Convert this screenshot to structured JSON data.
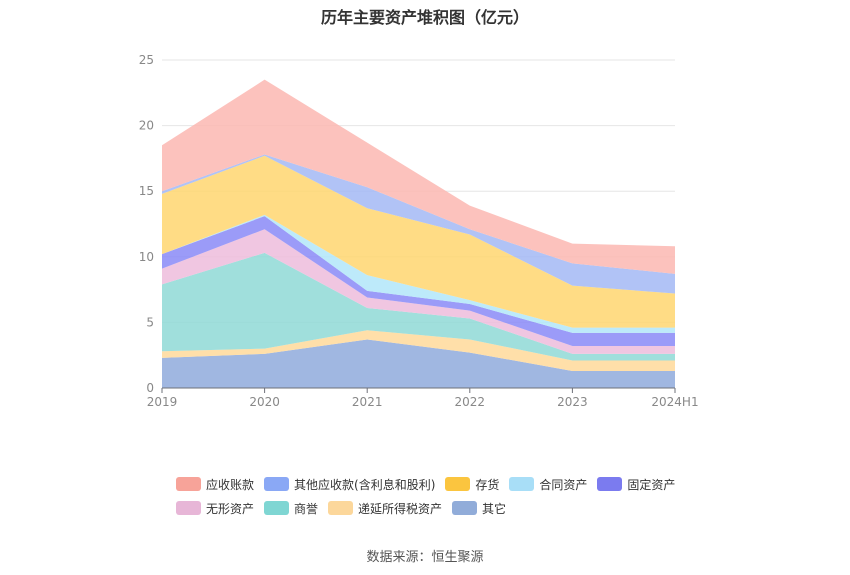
{
  "chart_data": {
    "type": "area",
    "stacked": true,
    "title": "历年主要资产堆积图（亿元）",
    "categories": [
      "2019",
      "2020",
      "2021",
      "2022",
      "2023",
      "2024H1"
    ],
    "ylim": [
      0,
      25
    ],
    "yticks": [
      0,
      5,
      10,
      15,
      20,
      25
    ],
    "grid": true,
    "legend_position": "bottom",
    "series": [
      {
        "name": "其它",
        "color": "#8faadc",
        "values": [
          2.3,
          2.6,
          3.7,
          2.7,
          1.3,
          1.3
        ]
      },
      {
        "name": "递延所得税资产",
        "color": "#ffd99a",
        "values": [
          0.5,
          0.4,
          0.7,
          1.0,
          0.8,
          0.8
        ]
      },
      {
        "name": "商誉",
        "color": "#8fd9d6",
        "values": [
          5.1,
          7.3,
          1.7,
          1.6,
          0.5,
          0.5
        ]
      },
      {
        "name": "无形资产",
        "color": "#edbcdc",
        "values": [
          1.2,
          1.8,
          0.8,
          0.6,
          0.6,
          0.6
        ]
      },
      {
        "name": "固定资产",
        "color": "#8a8af7",
        "values": [
          1.1,
          1.0,
          0.5,
          0.5,
          1.0,
          1.0
        ]
      },
      {
        "name": "合同资产",
        "color": "#b2e6f9",
        "values": [
          0.0,
          0.1,
          1.2,
          0.3,
          0.4,
          0.4
        ]
      },
      {
        "name": "存货",
        "color": "#ffd670",
        "values": [
          4.6,
          4.5,
          5.1,
          5.0,
          3.2,
          2.6
        ]
      },
      {
        "name": "其他应收款(含利息和股利)",
        "color": "#a3b8f5",
        "values": [
          0.2,
          0.1,
          1.6,
          0.4,
          1.7,
          1.5
        ]
      },
      {
        "name": "应收账款",
        "color": "#fbb7b1",
        "values": [
          3.5,
          5.7,
          3.4,
          1.8,
          1.5,
          2.1
        ]
      }
    ]
  },
  "legend": {
    "rows": [
      [
        {
          "label": "应收账款",
          "color": "#f7a399"
        },
        {
          "label": "其他应收款(含利息和股利)",
          "color": "#8aa8f5"
        },
        {
          "label": "存货",
          "color": "#fbc53f"
        },
        {
          "label": "合同资产",
          "color": "#a8def7"
        },
        {
          "label": "固定资产",
          "color": "#7b7bef"
        }
      ],
      [
        {
          "label": "无形资产",
          "color": "#e7b6d7"
        },
        {
          "label": "商誉",
          "color": "#7fd6d3"
        },
        {
          "label": "递延所得税资产",
          "color": "#fcd79b"
        },
        {
          "label": "其它",
          "color": "#91acd9"
        }
      ]
    ]
  },
  "source_note": "数据来源：恒生聚源"
}
